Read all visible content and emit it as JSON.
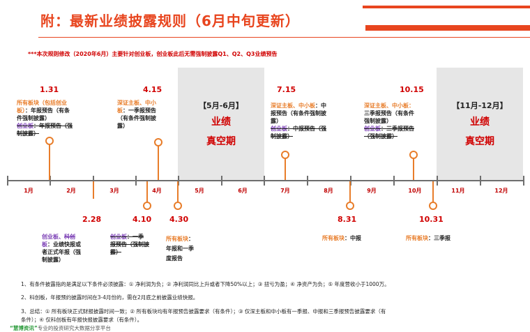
{
  "header": {
    "title": "附：最新业绩披露规则（6月中旬更新）"
  },
  "note": "***本次规则修改（2020年6月）主要针对创业板，创业板此后无需强制披露Q1、Q2、Q3业绩预告",
  "months": [
    "1月",
    "2月",
    "3月",
    "4月",
    "5月",
    "6月",
    "7月",
    "8月",
    "9月",
    "10月",
    "11月",
    "12月"
  ],
  "vacuums": [
    {
      "title": "【5月-6月】",
      "line1": "业绩",
      "line2": "真空期"
    },
    {
      "title": "【11月-12月】",
      "line1": "业绩",
      "line2": "真空期"
    }
  ],
  "events": {
    "e0131": {
      "date": "1.31",
      "l1a": "所有板块（包括创业",
      "l1b": "板）",
      "l1c": "：年报预告（有条",
      "l2": "件强制披露）",
      "l3a": "创业板",
      "l3b": "：年报预告（强",
      "l4": "制披露）"
    },
    "e0415": {
      "date": "4.15",
      "l1": "深证主板、中小",
      "l2a": "板",
      "l2b": "：一季报预告",
      "l3": "（有条件强制披",
      "l4": "露）"
    },
    "e0715": {
      "date": "7.15",
      "l1a": "深证主板、中小板",
      "l1b": "：中",
      "l2": "报预告（有条件强制披",
      "l3": "露）",
      "l4a": "创业板",
      "l4b": "：中报预告（强",
      "l5": "制披露）"
    },
    "e1015": {
      "date": "10.15",
      "l1": "深证主板、中小板：",
      "l2": "三季报预告（有条件",
      "l3": "强制披露）",
      "l4a": "创业板",
      "l4b": "：三季报预告",
      "l5": "（强制披露）"
    },
    "e0228": {
      "date": "2.28",
      "l1a": "创业板、",
      "l1b": "科创",
      "l2a": "板",
      "l2b": "：业绩快报或",
      "l3": "者正式年报（强",
      "l4": "制披露）"
    },
    "e0410": {
      "date": "4.10",
      "l1a": "创业板",
      "l1b": "：一季",
      "l2": "报预告（强制披",
      "l3": "露）"
    },
    "e0430": {
      "date": "4.30",
      "l1a": "所有板块",
      "l1b": "：",
      "l2": "年报和一季",
      "l3": "度报告"
    },
    "e0831": {
      "date": "8.31",
      "l1a": "所有板块",
      "l1b": "：中报"
    },
    "e1031": {
      "date": "10.31",
      "l1a": "所有板块",
      "l1b": "：三季报"
    }
  },
  "footnotes": [
    "1、有条件披露指的是满足以下条件必须披露：① 净利润为负；② 净利润同比上升或者下降50%以上；③ 扭亏为盈；④ 净资产为负；⑤ 年度营收小于1000万。",
    "2、科创板，年报预约披露时间在3-4月份的，需在2月底之前披露业绩快报。",
    "3、总结：① 所有板块正式财报披露时间一致；② 所有板块均有年报预告披露要求（有条件）；③ 仅深主板和中小板有一季报、中报和三季报预告披露要求（有",
    "条件）；④ 仅科创板有年报快报披露要求（有条件）。"
  ],
  "watermark": {
    "brand": "“慧博资讯”",
    "text": "专业的投资研究大数据分享平台"
  },
  "colors": {
    "accent": "#e8451e",
    "date": "#d00000",
    "board": "#e87d2a",
    "chinext": "#7b3fb5"
  }
}
